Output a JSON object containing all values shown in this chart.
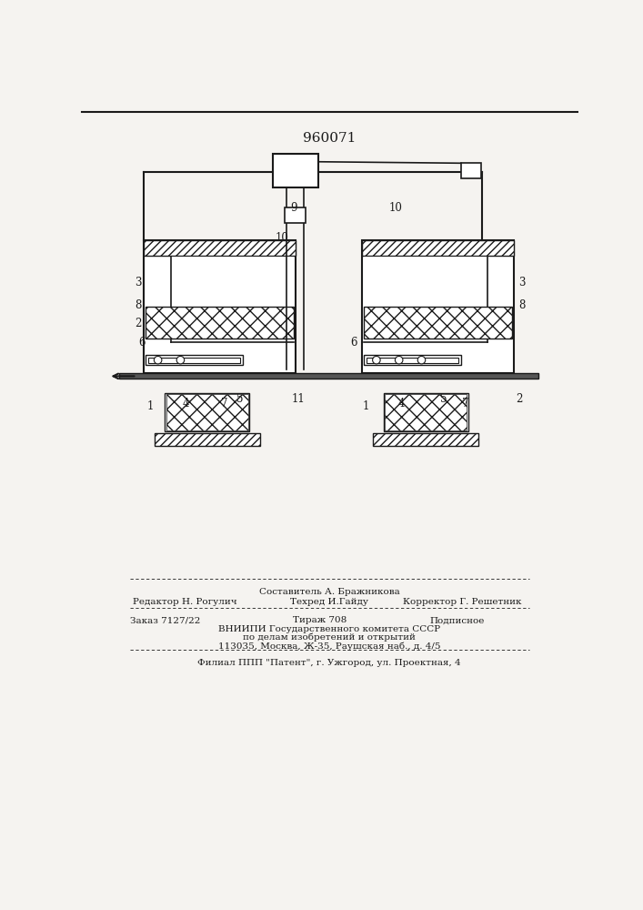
{
  "title": "960071",
  "title_fontsize": 11,
  "bg_color": "#f5f3f0",
  "line_color": "#1a1a1a",
  "footer": {
    "sestavitel": "Составитель А. Бражникова",
    "redaktor": "Редактор Н. Рогулич",
    "tekhred": "Техред И.Гайду",
    "korrektor": "Корректор Г. Решетник",
    "zakaz": "Заказ 7127/22",
    "tirazh": "Тираж 708",
    "podpisnoe": "Подписное",
    "vniipі": "ВНИИПИ Государственного комитета СССР",
    "po_delam": "по делам изобретений и открытий",
    "address": "113035, Москва, Ж-35, Раушская наб., д. 4/5",
    "filial": "Филиал ППП \"Патент\", г. Ужгород, ул. Проектная, 4"
  }
}
